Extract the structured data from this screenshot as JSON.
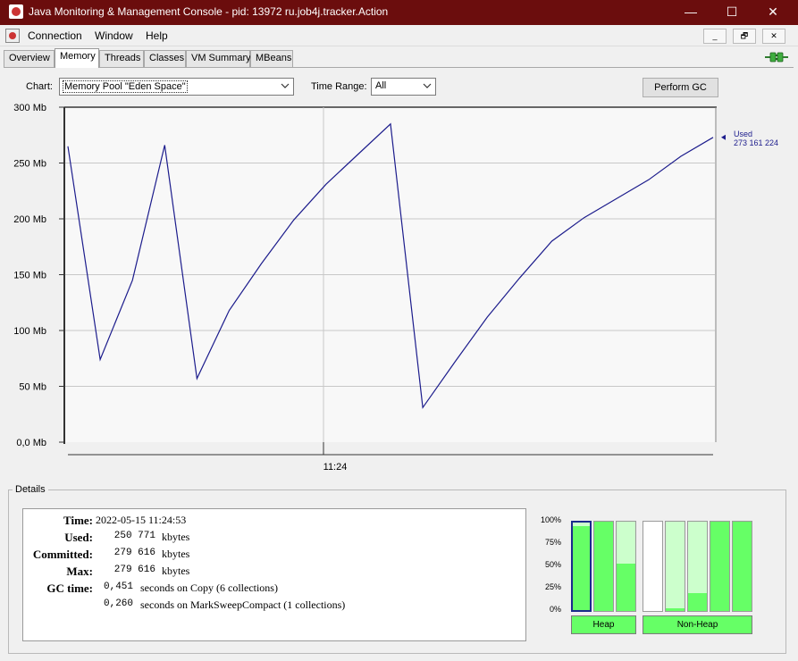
{
  "window": {
    "title": "Java Monitoring & Management Console - pid: 13972 ru.job4j.tracker.Action",
    "minimize_glyph": "—",
    "maximize_glyph": "☐",
    "close_glyph": "✕"
  },
  "menu": [
    "Connection",
    "Window",
    "Help"
  ],
  "mdi_buttons": [
    "_",
    "🗗",
    "✕"
  ],
  "tabs": [
    {
      "label": "Overview",
      "active": false
    },
    {
      "label": "Memory",
      "active": true
    },
    {
      "label": "Threads",
      "active": false
    },
    {
      "label": "Classes",
      "active": false
    },
    {
      "label": "VM Summary",
      "active": false
    },
    {
      "label": "MBeans",
      "active": false
    }
  ],
  "toolbar": {
    "chart_label": "Chart:",
    "chart_value": "Memory Pool \"Eden Space\"",
    "time_range_label": "Time Range:",
    "time_range_value": "All",
    "perform_gc_label": "Perform GC"
  },
  "chart_data": {
    "type": "line",
    "y_ticks": [
      "300 Mb",
      "250 Mb",
      "200 Mb",
      "150 Mb",
      "100 Mb",
      "50 Mb",
      "0,0 Mb"
    ],
    "ylim": [
      0,
      300
    ],
    "x_tick": "11:24",
    "grid": true,
    "series": [
      {
        "name": "Used",
        "color": "#1c1c8c",
        "values": [
          265,
          74,
          145,
          266,
          57,
          118,
          160,
          199,
          231,
          258,
          285,
          31,
          72,
          112,
          147,
          180,
          201,
          218,
          235,
          256,
          273
        ]
      }
    ],
    "legend": {
      "label": "Used",
      "value": "273 161 224",
      "position": "right"
    }
  },
  "details": {
    "title": "Details",
    "time_label": "Time:",
    "time_value": "2022-05-15 11:24:53",
    "used_label": "Used:",
    "used_num": "250 771",
    "used_unit": "kbytes",
    "committed_label": "Committed:",
    "committed_num": "279 616",
    "committed_unit": "kbytes",
    "max_label": "Max:",
    "max_num": "279 616",
    "max_unit": "kbytes",
    "gc_label": "GC time:",
    "gc1_num": "0,451",
    "gc1_text": "seconds on Copy (6 collections)",
    "gc2_num": "0,260",
    "gc2_text": "seconds on MarkSweepCompact (1 collections)"
  },
  "usage_bars": {
    "pct_labels": [
      "100%",
      "75%",
      "50%",
      "25%",
      "0%"
    ],
    "heap_label": "Heap",
    "nonheap_label": "Non-Heap",
    "heap": [
      0.96,
      1.0,
      0.53
    ],
    "nonheap": [
      0.0,
      0.03,
      0.2,
      1.0,
      1.0
    ]
  },
  "colors": {
    "title_bar": "#6b0d0d",
    "line": "#1c1c8c",
    "bar_fill": "#66ff66",
    "bar_bg": "#ccffcc"
  }
}
